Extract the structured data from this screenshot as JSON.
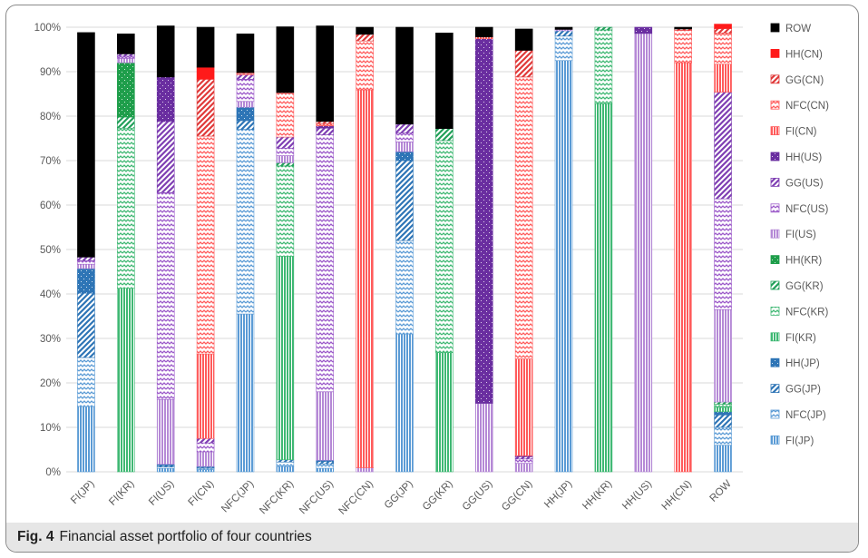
{
  "caption": {
    "label": "Fig. 4",
    "text": "Financial asset portfolio of four countries"
  },
  "chart_data": {
    "type": "bar",
    "stacked": true,
    "grid": true,
    "legend_position": "right",
    "title": "",
    "xlabel": "",
    "ylabel": "",
    "ylim": [
      0,
      100
    ],
    "y_ticks": [
      "0%",
      "10%",
      "20%",
      "30%",
      "40%",
      "50%",
      "60%",
      "70%",
      "80%",
      "90%",
      "100%"
    ],
    "categories": [
      "FI(JP)",
      "FI(KR)",
      "FI(US)",
      "FI(CN)",
      "NFC(JP)",
      "NFC(KR)",
      "NFC(US)",
      "NFC(CN)",
      "GG(JP)",
      "GG(KR)",
      "GG(US)",
      "GG(CN)",
      "HH(JP)",
      "HH(KR)",
      "HH(US)",
      "HH(CN)",
      "ROW"
    ],
    "series": [
      {
        "name": "FI(JP)",
        "color": "#5b9bd5",
        "pattern": "vlines",
        "values": [
          14.7,
          0,
          0.8,
          0.5,
          35.5,
          1.2,
          0.8,
          0,
          31.0,
          0,
          0,
          0,
          92.5,
          0,
          0,
          0,
          6.0
        ]
      },
      {
        "name": "NFC(JP)",
        "color": "#5b9bd5",
        "pattern": "waves",
        "values": [
          11.0,
          0,
          0.3,
          0.3,
          41.5,
          1.0,
          1.0,
          0,
          21.0,
          0,
          0,
          0,
          5.5,
          0,
          0,
          0,
          4.0
        ]
      },
      {
        "name": "GG(JP)",
        "color": "#2e75b6",
        "pattern": "diag",
        "values": [
          14.5,
          0,
          0.3,
          0.2,
          2.0,
          0.5,
          0.5,
          0,
          18.0,
          0,
          0,
          0,
          1.2,
          0,
          0,
          0,
          2.8
        ]
      },
      {
        "name": "HH(JP)",
        "color": "#2e75b6",
        "pattern": "dots",
        "values": [
          5.5,
          0,
          0.3,
          0.2,
          3.0,
          0,
          0.3,
          0,
          2.0,
          0,
          0,
          0,
          0,
          0,
          0,
          0,
          0.7
        ]
      },
      {
        "name": "FI(KR)",
        "color": "#3fb873",
        "pattern": "vlines",
        "values": [
          0,
          41.3,
          0,
          0,
          0,
          45.8,
          0,
          0,
          0,
          26.8,
          0,
          0,
          0,
          82.8,
          0,
          0,
          1.0
        ]
      },
      {
        "name": "NFC(KR)",
        "color": "#3fb873",
        "pattern": "waves",
        "values": [
          0,
          36.0,
          0,
          0,
          0,
          20.3,
          0,
          0,
          0,
          47.7,
          0,
          0,
          0,
          16.6,
          0,
          0,
          0.7
        ]
      },
      {
        "name": "GG(KR)",
        "color": "#22a05a",
        "pattern": "diag",
        "values": [
          0,
          2.5,
          0,
          0,
          0,
          0.7,
          0,
          0,
          0,
          2.7,
          0,
          0,
          0,
          0.6,
          0,
          0,
          0.5
        ]
      },
      {
        "name": "HH(KR)",
        "color": "#1f9e4b",
        "pattern": "dots",
        "values": [
          0,
          12.2,
          0,
          0,
          0,
          0,
          0,
          0,
          0,
          0,
          0,
          0,
          0,
          0,
          0,
          0,
          0
        ]
      },
      {
        "name": "FI(US)",
        "color": "#b589d6",
        "pattern": "vlines",
        "values": [
          1.0,
          1.0,
          14.6,
          3.3,
          1.3,
          1.6,
          15.4,
          0.9,
          2.2,
          0,
          15.4,
          1.9,
          0.3,
          0,
          98.6,
          0,
          20.8
        ]
      },
      {
        "name": "NFC(US)",
        "color": "#9b59c9",
        "pattern": "waves",
        "values": [
          0.8,
          0.5,
          46.5,
          2.0,
          5.0,
          1.7,
          57.8,
          0,
          2.0,
          0,
          0,
          1.0,
          0,
          0,
          0,
          0,
          24.9
        ]
      },
      {
        "name": "GG(US)",
        "color": "#7f3fb3",
        "pattern": "diag",
        "values": [
          0.8,
          0.5,
          16.0,
          1.0,
          1.0,
          2.5,
          1.5,
          0,
          2.0,
          0,
          0,
          0.5,
          0,
          0,
          0,
          0,
          24.0
        ]
      },
      {
        "name": "HH(US)",
        "color": "#6a2ea0",
        "pattern": "dots",
        "values": [
          0,
          0,
          10.0,
          0,
          0,
          0,
          0.5,
          0,
          0,
          0,
          82.0,
          0.2,
          0,
          0,
          1.4,
          0,
          0
        ]
      },
      {
        "name": "FI(CN)",
        "color": "#ff5b5b",
        "pattern": "vlines",
        "values": [
          0,
          0,
          0,
          19.0,
          0,
          0,
          0,
          85.0,
          0,
          0,
          0.4,
          21.8,
          0,
          0,
          0,
          92.0,
          6.3
        ]
      },
      {
        "name": "NFC(CN)",
        "color": "#ff5b5b",
        "pattern": "waves",
        "values": [
          0,
          0,
          0,
          49.0,
          0.3,
          10.0,
          0.5,
          11.0,
          0,
          0,
          0,
          63.4,
          0,
          0,
          0,
          7.3,
          7.0
        ]
      },
      {
        "name": "GG(CN)",
        "color": "#e03a3a",
        "pattern": "diag",
        "values": [
          0,
          0,
          0,
          12.8,
          0.2,
          0,
          0.5,
          1.5,
          0,
          0,
          0,
          6.0,
          0,
          0,
          0,
          0.3,
          1.0
        ]
      },
      {
        "name": "HH(CN)",
        "color": "#ff1a1a",
        "pattern": "solid",
        "values": [
          0,
          0,
          0,
          2.7,
          0,
          0,
          0,
          0,
          0,
          0,
          0,
          0,
          0,
          0,
          0,
          0,
          1.0
        ]
      },
      {
        "name": "ROW",
        "color": "#000000",
        "pattern": "solid",
        "values": [
          50.5,
          4.5,
          11.5,
          9.0,
          8.7,
          14.8,
          21.5,
          1.6,
          21.8,
          21.5,
          2.2,
          4.8,
          0.5,
          0,
          0,
          0.4,
          0
        ]
      }
    ]
  }
}
